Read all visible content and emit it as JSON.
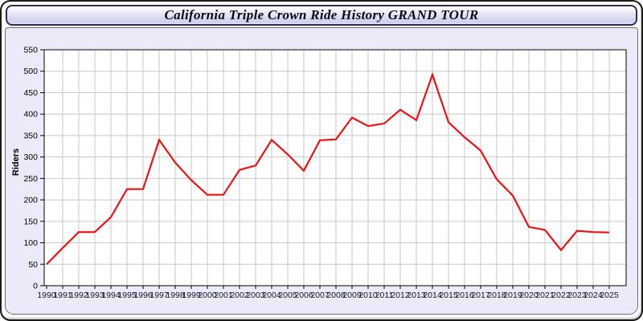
{
  "header": {
    "title": "California Triple Crown Ride History GRAND TOUR"
  },
  "chart_data": {
    "type": "line",
    "title": "California Triple Crown Ride History GRAND TOUR",
    "xlabel": "",
    "ylabel": "Riders",
    "ylim": [
      0,
      550
    ],
    "ytick_step": 50,
    "grid": true,
    "legend_position": "none",
    "line_color": "#ee1111",
    "gridline_color": "#c8c8c8",
    "panel_color": "#eaeaf8",
    "plot_background": "#ffffff",
    "x": [
      1990,
      1991,
      1992,
      1993,
      1994,
      1995,
      1996,
      1997,
      1998,
      1999,
      2000,
      2001,
      2002,
      2003,
      2004,
      2005,
      2006,
      2007,
      2008,
      2009,
      2010,
      2011,
      2012,
      2013,
      2014,
      2015,
      2016,
      2017,
      2018,
      2019,
      2020,
      2021,
      2022,
      2023,
      2024,
      2025
    ],
    "values": [
      50,
      88,
      125,
      125,
      160,
      225,
      225,
      340,
      287,
      246,
      212,
      212,
      270,
      280,
      340,
      306,
      268,
      339,
      341,
      392,
      372,
      378,
      410,
      386,
      492,
      381,
      346,
      315,
      248,
      210,
      137,
      130,
      83,
      128,
      125,
      124
    ]
  }
}
